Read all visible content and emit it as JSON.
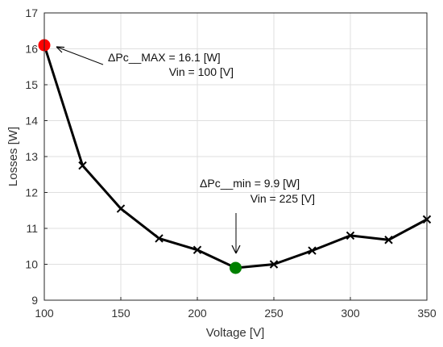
{
  "chart_data": {
    "type": "line",
    "xlabel": "Voltage [V]",
    "ylabel": "Losses [W]",
    "xlim": [
      100,
      350
    ],
    "ylim": [
      9,
      17
    ],
    "xticks": [
      100,
      150,
      200,
      250,
      300,
      350
    ],
    "yticks": [
      9,
      10,
      11,
      12,
      13,
      14,
      15,
      16,
      17
    ],
    "grid": true,
    "series": [
      {
        "x": [
          100,
          125,
          150,
          175,
          200,
          225,
          250,
          275,
          300,
          325,
          350
        ],
        "y": [
          16.1,
          12.75,
          11.55,
          10.72,
          10.4,
          9.9,
          10.0,
          10.38,
          10.8,
          10.68,
          11.25
        ],
        "color": "#000000",
        "marker": "x"
      }
    ],
    "highlights": [
      {
        "x": 100,
        "y": 16.1,
        "color": "#ff0000"
      },
      {
        "x": 225,
        "y": 9.9,
        "color": "#008000"
      }
    ],
    "annotations": [
      {
        "line1": "ΔPc__MAX = 16.1 [W]",
        "line2": "Vin = 100 [V]"
      },
      {
        "line1": "ΔPc__min = 9.9 [W]",
        "line2": "Vin = 225 [V]"
      }
    ]
  }
}
